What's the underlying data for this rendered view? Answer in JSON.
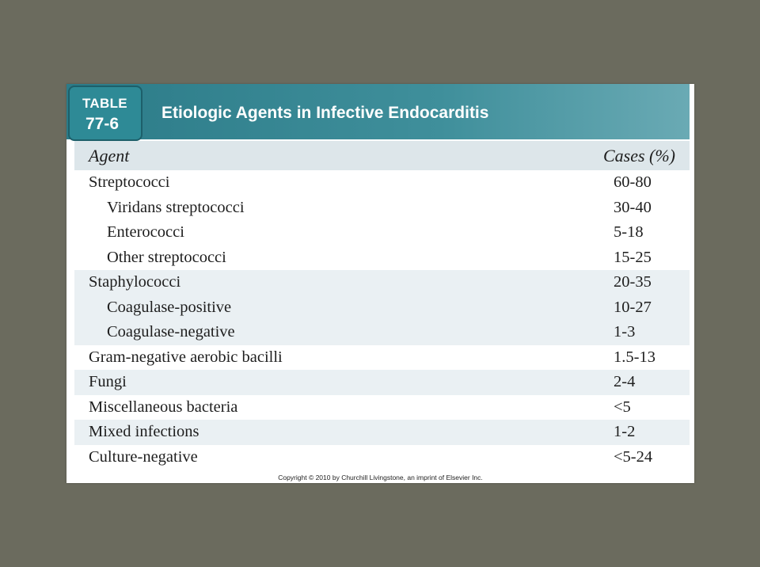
{
  "table": {
    "badge_word": "TABLE",
    "badge_number": "77-6",
    "title": "Etiologic Agents in Infective Endocarditis",
    "columns": {
      "agent": "Agent",
      "cases": "Cases (%)"
    },
    "groups": [
      {
        "rows": [
          {
            "agent": "Streptococci",
            "cases": "60-80"
          },
          {
            "agent": "Viridans streptococci",
            "cases": "30-40"
          },
          {
            "agent": "Enterococci",
            "cases": "5-18"
          },
          {
            "agent": "Other streptococci",
            "cases": "15-25"
          }
        ]
      },
      {
        "rows": [
          {
            "agent": "Staphylococci",
            "cases": "20-35"
          },
          {
            "agent": "Coagulase-positive",
            "cases": "10-27"
          },
          {
            "agent": "Coagulase-negative",
            "cases": "1-3"
          }
        ]
      },
      {
        "rows": [
          {
            "agent": "Gram-negative aerobic bacilli",
            "cases": "1.5-13"
          }
        ]
      },
      {
        "rows": [
          {
            "agent": "Fungi",
            "cases": "2-4"
          }
        ]
      },
      {
        "rows": [
          {
            "agent": "Miscellaneous bacteria",
            "cases": "<5"
          }
        ]
      },
      {
        "rows": [
          {
            "agent": "Mixed infections",
            "cases": "1-2"
          }
        ]
      },
      {
        "rows": [
          {
            "agent": "Culture-negative",
            "cases": "<5-24"
          }
        ]
      }
    ]
  },
  "copyright": "Copyright © 2010 by Churchill Livingstone, an imprint of Elsevier Inc."
}
